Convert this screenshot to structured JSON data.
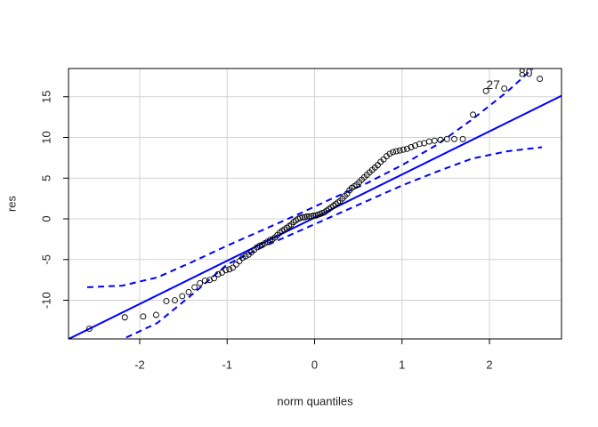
{
  "chart_data": {
    "type": "qq",
    "x_label": "norm quantiles",
    "y_label": "res",
    "xlim": [
      -2.814,
      2.824
    ],
    "ylim": [
      -14.75,
      18.47
    ],
    "xticks": [
      -2,
      -1,
      0,
      1,
      2
    ],
    "yticks": [
      -10,
      -5,
      0,
      5,
      10,
      15
    ],
    "grid": true,
    "point_color": "#000000",
    "line_color": "#0000ff",
    "x": [
      -2.576,
      -2.17,
      -1.96,
      -1.812,
      -1.695,
      -1.598,
      -1.514,
      -1.44,
      -1.372,
      -1.311,
      -1.254,
      -1.2,
      -1.15,
      -1.103,
      -1.058,
      -1.015,
      -0.974,
      -0.935,
      -0.896,
      -0.86,
      -0.824,
      -0.789,
      -0.755,
      -0.722,
      -0.69,
      -0.659,
      -0.628,
      -0.598,
      -0.568,
      -0.539,
      -0.51,
      -0.482,
      -0.454,
      -0.426,
      -0.399,
      -0.372,
      -0.345,
      -0.319,
      -0.292,
      -0.266,
      -0.24,
      -0.215,
      -0.189,
      -0.164,
      -0.138,
      -0.113,
      -0.088,
      -0.063,
      -0.038,
      -0.013,
      0.013,
      0.038,
      0.063,
      0.088,
      0.113,
      0.138,
      0.164,
      0.189,
      0.215,
      0.24,
      0.266,
      0.292,
      0.319,
      0.345,
      0.372,
      0.399,
      0.426,
      0.454,
      0.482,
      0.51,
      0.539,
      0.568,
      0.598,
      0.628,
      0.659,
      0.69,
      0.722,
      0.755,
      0.789,
      0.824,
      0.86,
      0.896,
      0.935,
      0.974,
      1.015,
      1.058,
      1.103,
      1.15,
      1.2,
      1.254,
      1.311,
      1.372,
      1.44,
      1.514,
      1.598,
      1.695,
      1.812,
      1.96,
      2.17,
      2.576
    ],
    "values": [
      -13.5,
      -12.1,
      -12.0,
      -11.8,
      -10.1,
      -10.0,
      -9.5,
      -9.0,
      -8.4,
      -7.9,
      -7.6,
      -7.5,
      -7.3,
      -6.8,
      -6.6,
      -6.3,
      -6.2,
      -6.0,
      -5.6,
      -5.2,
      -4.8,
      -4.6,
      -4.4,
      -4.1,
      -3.8,
      -3.5,
      -3.3,
      -3.2,
      -3.0,
      -2.8,
      -2.6,
      -2.5,
      -2.3,
      -2.0,
      -1.7,
      -1.5,
      -1.3,
      -1.1,
      -0.9,
      -0.7,
      -0.4,
      -0.2,
      0.0,
      0.1,
      0.2,
      0.2,
      0.3,
      0.3,
      0.3,
      0.4,
      0.4,
      0.5,
      0.6,
      0.7,
      0.8,
      1.0,
      1.2,
      1.4,
      1.6,
      1.8,
      2.0,
      2.2,
      2.5,
      2.8,
      3.1,
      3.5,
      3.8,
      4.0,
      4.2,
      4.5,
      4.8,
      5.1,
      5.4,
      5.7,
      6.0,
      6.3,
      6.6,
      7.0,
      7.3,
      7.7,
      8.0,
      8.2,
      8.3,
      8.4,
      8.5,
      8.6,
      8.8,
      9.0,
      9.2,
      9.3,
      9.5,
      9.6,
      9.7,
      9.8,
      9.8,
      9.8,
      12.8,
      15.7,
      16.0,
      17.2
    ],
    "point_labels": [
      null,
      null,
      null,
      null,
      null,
      null,
      null,
      null,
      null,
      null,
      null,
      null,
      null,
      null,
      null,
      null,
      null,
      null,
      null,
      null,
      null,
      null,
      null,
      null,
      null,
      null,
      null,
      null,
      null,
      null,
      null,
      null,
      null,
      null,
      null,
      null,
      null,
      null,
      null,
      null,
      null,
      null,
      null,
      null,
      null,
      null,
      null,
      null,
      null,
      null,
      null,
      null,
      null,
      null,
      null,
      null,
      null,
      null,
      null,
      null,
      null,
      null,
      null,
      null,
      null,
      null,
      null,
      null,
      null,
      null,
      null,
      null,
      null,
      null,
      null,
      null,
      null,
      null,
      null,
      null,
      null,
      null,
      null,
      null,
      null,
      null,
      null,
      null,
      null,
      null,
      null,
      null,
      null,
      null,
      null,
      null,
      null,
      "27",
      null,
      "80"
    ],
    "reference_line": {
      "intercept": 0.15,
      "slope": 5.3
    },
    "envelope": {
      "x": [
        -2.6,
        -2.2,
        -1.8,
        -1.4,
        -1.0,
        -0.6,
        -0.2,
        0.2,
        0.6,
        1.0,
        1.4,
        1.8,
        2.2,
        2.6
      ],
      "upper": [
        -8.4,
        -8.2,
        -7.2,
        -5.3,
        -3.3,
        -1.4,
        0.5,
        2.5,
        4.4,
        6.6,
        9.1,
        12.2,
        15.6,
        19.5
      ],
      "lower": [
        -19.0,
        -14.8,
        -12.8,
        -9.3,
        -5.6,
        -3.5,
        -1.6,
        0.3,
        2.2,
        4.1,
        5.8,
        7.4,
        8.3,
        8.8
      ]
    }
  }
}
